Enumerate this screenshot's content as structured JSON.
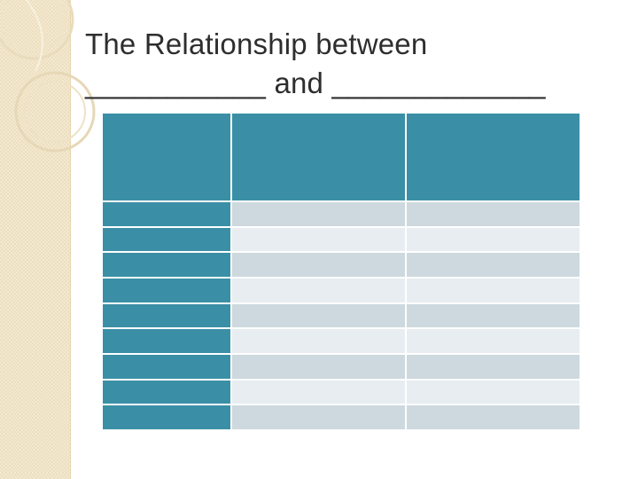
{
  "slide": {
    "title_line1": "The Relationship between",
    "title_line2": "___________ and _____________"
  },
  "table": {
    "columns": 3,
    "header": [
      "",
      "",
      ""
    ],
    "rows": [
      [
        "",
        "",
        ""
      ],
      [
        "",
        "",
        ""
      ],
      [
        "",
        "",
        ""
      ],
      [
        "",
        "",
        ""
      ],
      [
        "",
        "",
        ""
      ],
      [
        "",
        "",
        ""
      ],
      [
        "",
        "",
        ""
      ],
      [
        "",
        "",
        ""
      ],
      [
        "",
        "",
        ""
      ]
    ]
  },
  "colors": {
    "header": "#3a8fa6",
    "row_odd": "#cdd9de",
    "row_even": "#e7edf0",
    "side_band": "#f4e9cf"
  }
}
